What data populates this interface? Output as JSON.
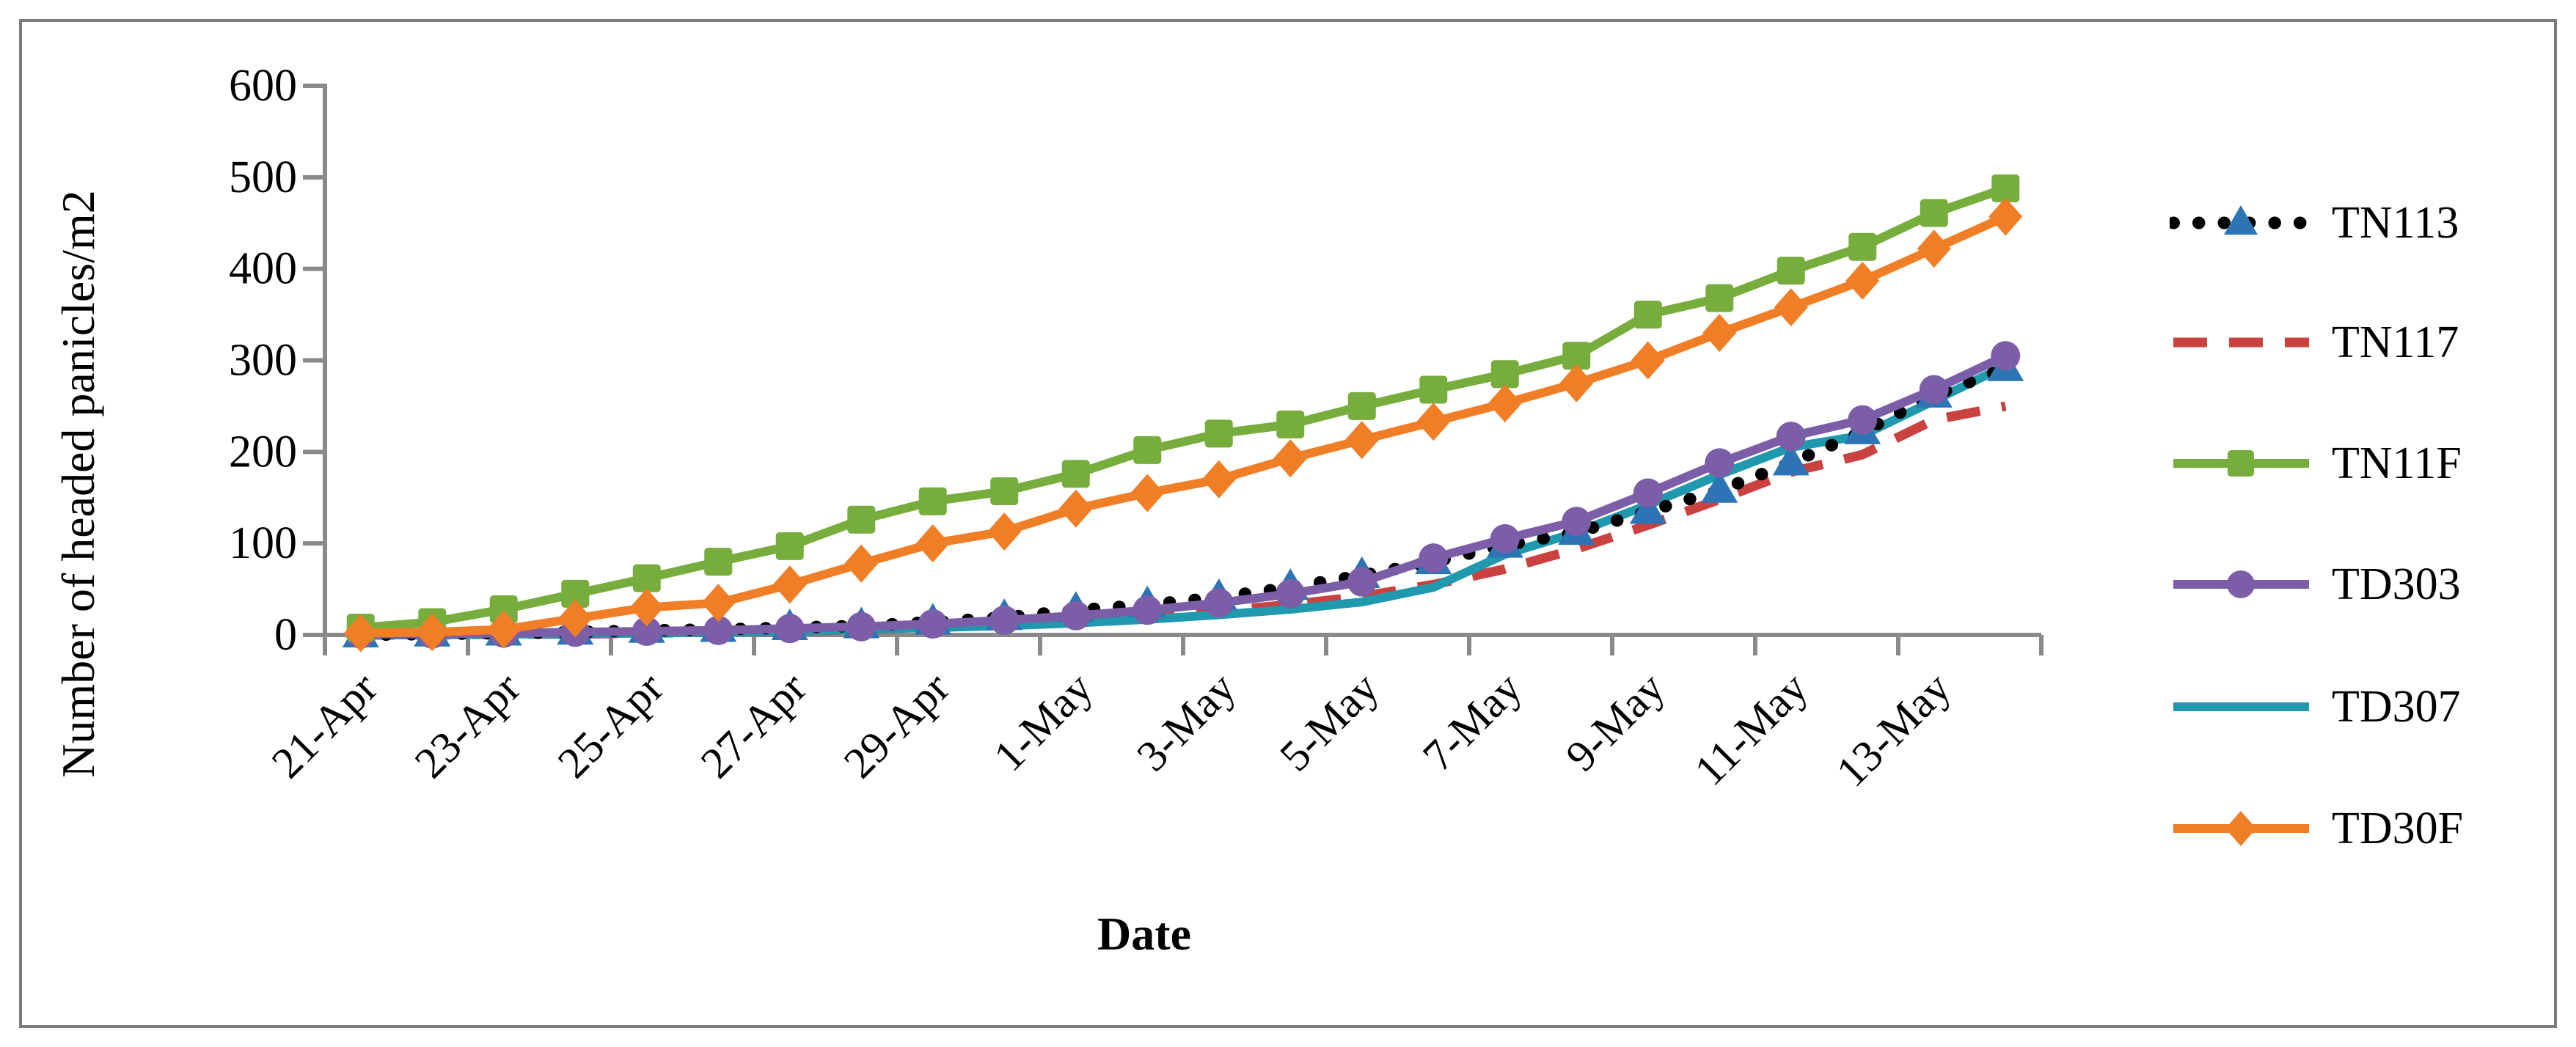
{
  "figure": {
    "border_color": "#7c7c7c",
    "axis_color": "#8a8a8a",
    "background": "#ffffff"
  },
  "y_axis": {
    "title": "Number of headed panicles/m2",
    "tick_labels": [
      "0",
      "100",
      "200",
      "300",
      "400",
      "500",
      "600"
    ],
    "min": 0,
    "max": 600,
    "step": 100
  },
  "x_axis": {
    "title": "Date",
    "visible_tick_labels": [
      "21-Apr",
      "23-Apr",
      "25-Apr",
      "27-Apr",
      "29-Apr",
      "1-May",
      "3-May",
      "5-May",
      "7-May",
      "9-May",
      "11-May",
      "13-May"
    ]
  },
  "legend": {
    "items": [
      {
        "label": "TN113",
        "color": "#000000",
        "marker_color": "#2d74b5",
        "line_style": "dotted",
        "marker": "triangle"
      },
      {
        "label": "TN117",
        "color": "#c9423f",
        "marker_color": "#c9423f",
        "line_style": "dashed",
        "marker": "none"
      },
      {
        "label": "TN11F",
        "color": "#76ad3c",
        "marker_color": "#76ad3c",
        "line_style": "solid",
        "marker": "square"
      },
      {
        "label": "TD303",
        "color": "#7b5ea7",
        "marker_color": "#7b5ea7",
        "line_style": "solid",
        "marker": "circle"
      },
      {
        "label": "TD307",
        "color": "#2098ae",
        "marker_color": "#2098ae",
        "line_style": "solid",
        "marker": "none"
      },
      {
        "label": "TD30F",
        "color": "#f07e26",
        "marker_color": "#f07e26",
        "line_style": "solid",
        "marker": "diamond"
      }
    ]
  },
  "chart_data": {
    "type": "line",
    "title": "",
    "xlabel": "Date",
    "ylabel": "Number of headed panicles/m2",
    "ylim": [
      0,
      600
    ],
    "grid": false,
    "legend_position": "right",
    "categories": [
      "21-Apr",
      "22-Apr",
      "23-Apr",
      "24-Apr",
      "25-Apr",
      "26-Apr",
      "27-Apr",
      "28-Apr",
      "29-Apr",
      "30-Apr",
      "1-May",
      "2-May",
      "3-May",
      "4-May",
      "5-May",
      "6-May",
      "7-May",
      "8-May",
      "9-May",
      "10-May",
      "11-May",
      "12-May",
      "13-May",
      "14-May"
    ],
    "label_every": 2,
    "series": [
      {
        "name": "TN113",
        "color": "#000000",
        "marker_color": "#2d74b5",
        "line_style": "dotted",
        "marker": "triangle",
        "values": [
          0,
          1,
          2,
          3,
          5,
          6,
          8,
          10,
          14,
          19,
          27,
          33,
          41,
          52,
          65,
          80,
          98,
          112,
          135,
          158,
          188,
          222,
          262,
          291
        ]
      },
      {
        "name": "TN117",
        "color": "#c9423f",
        "marker_color": "#c9423f",
        "line_style": "dashed",
        "marker": "none",
        "values": [
          0,
          0,
          1,
          1,
          2,
          3,
          4,
          6,
          8,
          11,
          15,
          20,
          26,
          33,
          42,
          55,
          72,
          94,
          120,
          148,
          178,
          197,
          235,
          250
        ]
      },
      {
        "name": "TN11F",
        "color": "#76ad3c",
        "marker_color": "#76ad3c",
        "line_style": "solid",
        "marker": "square",
        "values": [
          8,
          14,
          28,
          45,
          62,
          80,
          97,
          126,
          146,
          157,
          176,
          202,
          220,
          230,
          250,
          268,
          285,
          305,
          350,
          368,
          398,
          424,
          461,
          488
        ]
      },
      {
        "name": "TD303",
        "color": "#7b5ea7",
        "marker_color": "#7b5ea7",
        "line_style": "solid",
        "marker": "circle",
        "values": [
          1,
          1,
          2,
          3,
          4,
          5,
          7,
          9,
          12,
          16,
          21,
          27,
          35,
          45,
          58,
          84,
          105,
          124,
          155,
          188,
          217,
          235,
          268,
          305
        ]
      },
      {
        "name": "TD307",
        "color": "#2098ae",
        "marker_color": "#2098ae",
        "line_style": "solid",
        "marker": "none",
        "values": [
          0,
          0,
          1,
          1,
          2,
          3,
          4,
          6,
          8,
          10,
          13,
          17,
          22,
          28,
          36,
          52,
          88,
          112,
          142,
          175,
          205,
          218,
          256,
          294
        ]
      },
      {
        "name": "TD30F",
        "color": "#f07e26",
        "marker_color": "#f07e26",
        "line_style": "solid",
        "marker": "diamond",
        "values": [
          2,
          3,
          6,
          18,
          30,
          35,
          55,
          78,
          100,
          113,
          138,
          155,
          170,
          193,
          213,
          233,
          253,
          275,
          300,
          330,
          358,
          387,
          422,
          457
        ]
      }
    ]
  }
}
